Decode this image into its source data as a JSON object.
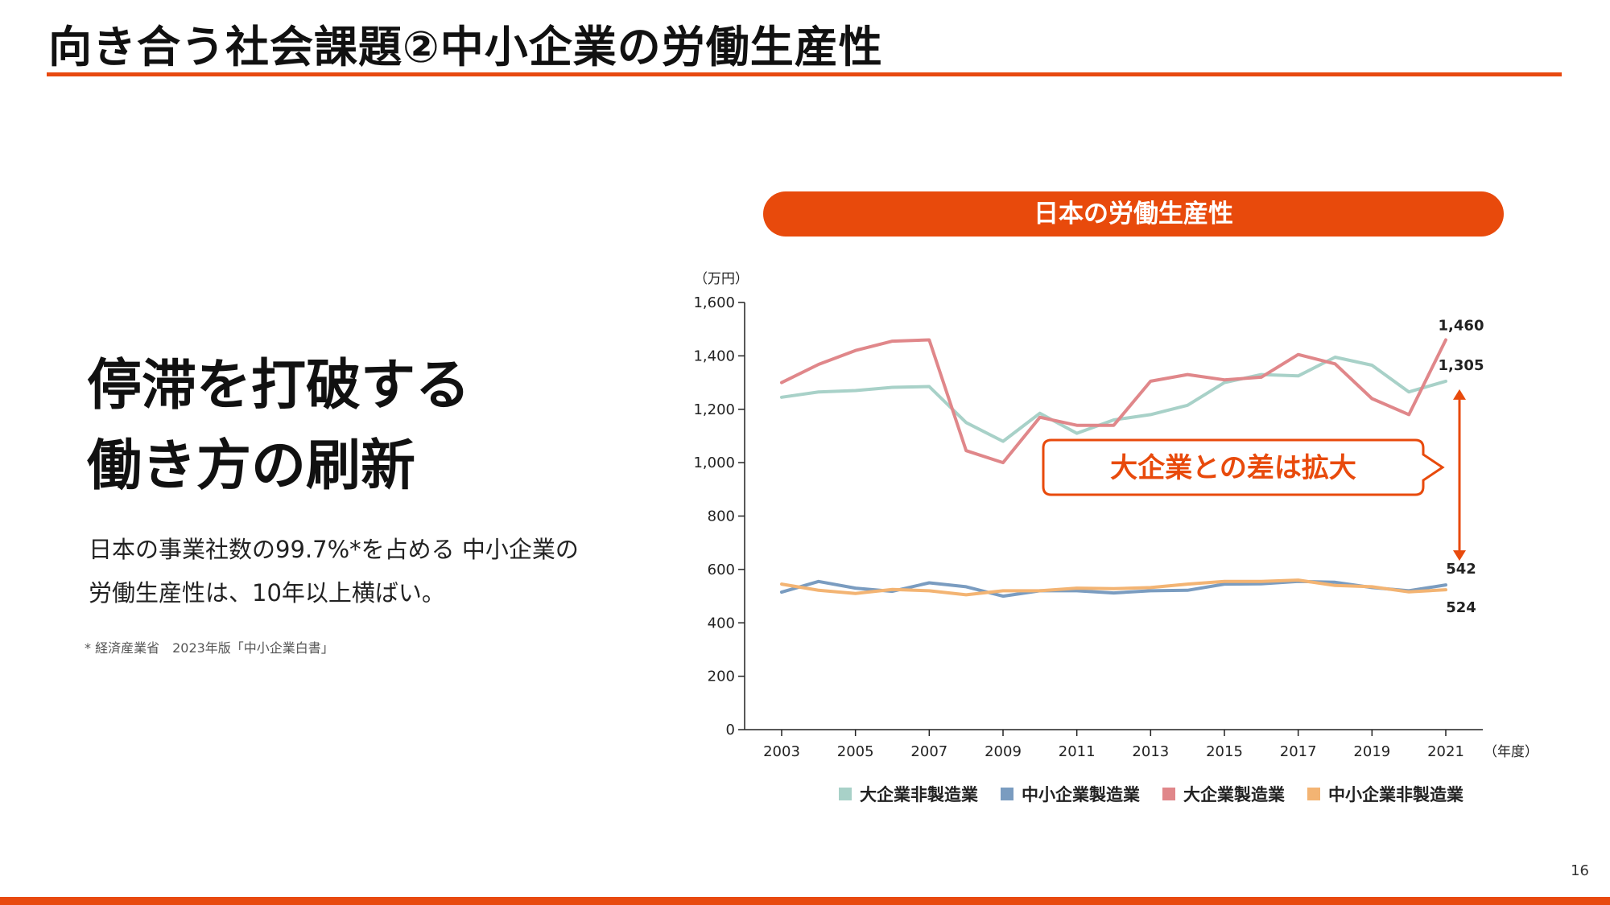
{
  "slide": {
    "title": "向き合う社会課題②中小企業の労働生産性",
    "headline": [
      "停滞を打破する",
      "働き方の刷新"
    ],
    "body": [
      "日本の事業社数の99.7%*を占める 中小企業の",
      "労働生産性は、10年以上横ばい。"
    ],
    "footnote": "* 経済産業省　2023年版「中小企業白書」",
    "page_number": "16"
  },
  "chart_data": {
    "type": "line",
    "title": "日本の労働生産性",
    "ylabel": "（万円）",
    "xlabel": "（年度）",
    "ylim": [
      0,
      1600
    ],
    "yticks": [
      0,
      200,
      400,
      600,
      800,
      1000,
      1200,
      1400,
      1600
    ],
    "ytick_labels": [
      "0",
      "200",
      "400",
      "600",
      "800",
      "1,000",
      "1,200",
      "1,400",
      "1,600"
    ],
    "x": [
      2003,
      2004,
      2005,
      2006,
      2007,
      2008,
      2009,
      2010,
      2011,
      2012,
      2013,
      2014,
      2015,
      2016,
      2017,
      2018,
      2019,
      2020,
      2021
    ],
    "xtick_labels": [
      "2003",
      "2005",
      "2007",
      "2009",
      "2011",
      "2013",
      "2015",
      "2017",
      "2019",
      "2021"
    ],
    "series": [
      {
        "name": "大企業非製造業",
        "color": "#a8d1c8",
        "values": [
          1245,
          1265,
          1270,
          1282,
          1285,
          1150,
          1080,
          1185,
          1110,
          1160,
          1180,
          1215,
          1300,
          1330,
          1325,
          1395,
          1365,
          1265,
          1305
        ]
      },
      {
        "name": "中小企業製造業",
        "color": "#7a9cc0",
        "values": [
          515,
          555,
          530,
          518,
          550,
          535,
          500,
          520,
          520,
          512,
          520,
          522,
          545,
          546,
          555,
          552,
          532,
          520,
          542
        ]
      },
      {
        "name": "大企業製造業",
        "color": "#e0878a",
        "values": [
          1300,
          1368,
          1420,
          1455,
          1460,
          1045,
          1000,
          1170,
          1140,
          1140,
          1305,
          1330,
          1310,
          1320,
          1405,
          1370,
          1240,
          1180,
          1460
        ]
      },
      {
        "name": "中小企業非製造業",
        "color": "#f3b473",
        "values": [
          545,
          522,
          510,
          525,
          520,
          505,
          520,
          520,
          530,
          528,
          532,
          545,
          555,
          555,
          560,
          540,
          535,
          516,
          524
        ]
      }
    ],
    "annotations": {
      "values": [
        "1,460",
        "1,305",
        "542",
        "524"
      ],
      "callout": "大企業との差は拡大",
      "accent_color": "#e84a0c"
    }
  }
}
